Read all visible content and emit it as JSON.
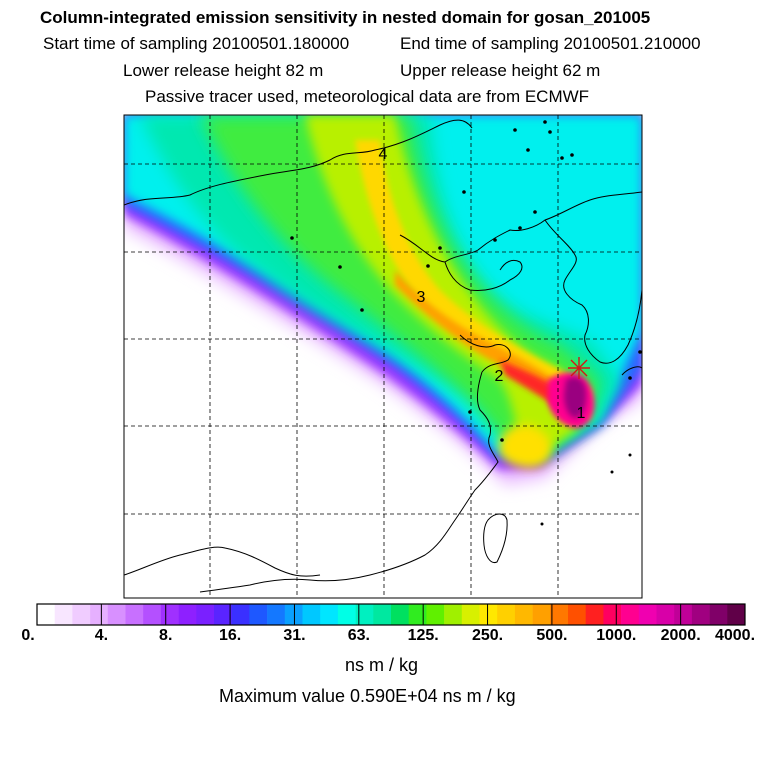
{
  "header": {
    "title": "Column-integrated emission sensitivity in nested domain for gosan_201005",
    "start_time": "Start time of sampling 20100501.180000",
    "end_time": "End time of sampling 20100501.210000",
    "lower_release": "Lower release height   82 m",
    "upper_release": "Upper release height   62 m",
    "tracer_note": "Passive tracer used, meteorological data are from ECMWF"
  },
  "trajectory": {
    "markers": [
      {
        "label": "1"
      },
      {
        "label": "2"
      },
      {
        "label": "3"
      },
      {
        "label": "4"
      }
    ],
    "release_site_marker": "star-marker"
  },
  "colorbar": {
    "tick_labels": [
      "0.",
      "4.",
      "8.",
      "16.",
      "31.",
      "63.",
      "125.",
      "250.",
      "500.",
      "1000.",
      "2000.",
      "4000."
    ],
    "tick_values": [
      0,
      4,
      8,
      16,
      31,
      63,
      125,
      250,
      500,
      1000,
      2000,
      4000
    ],
    "colors": [
      "#ffffff",
      "#f8e6ff",
      "#f0ccff",
      "#e6b0ff",
      "#d890ff",
      "#c870ff",
      "#b450ff",
      "#a030ff",
      "#8e20ff",
      "#7a20ff",
      "#5a24ff",
      "#3a30ff",
      "#1e58ff",
      "#1478ff",
      "#0aa0ff",
      "#00c8ff",
      "#00e6ff",
      "#00ffe6",
      "#00f0c0",
      "#00e8a0",
      "#00e060",
      "#30ec20",
      "#60f000",
      "#a0f000",
      "#d8f000",
      "#ffe800",
      "#ffd000",
      "#ffb800",
      "#ffa000",
      "#ff7800",
      "#ff5000",
      "#ff2020",
      "#ff0060",
      "#ff0090",
      "#f000b0",
      "#d800a8",
      "#c00098",
      "#a00080",
      "#800068",
      "#600048"
    ],
    "units": "ns m / kg"
  },
  "maximum_value_text": "Maximum value  0.590E+04 ns m / kg",
  "map": {
    "max_value": 5900,
    "colors": {
      "coastline": "#000000",
      "gridline": "#000000",
      "release_marker": "#d01818"
    }
  }
}
